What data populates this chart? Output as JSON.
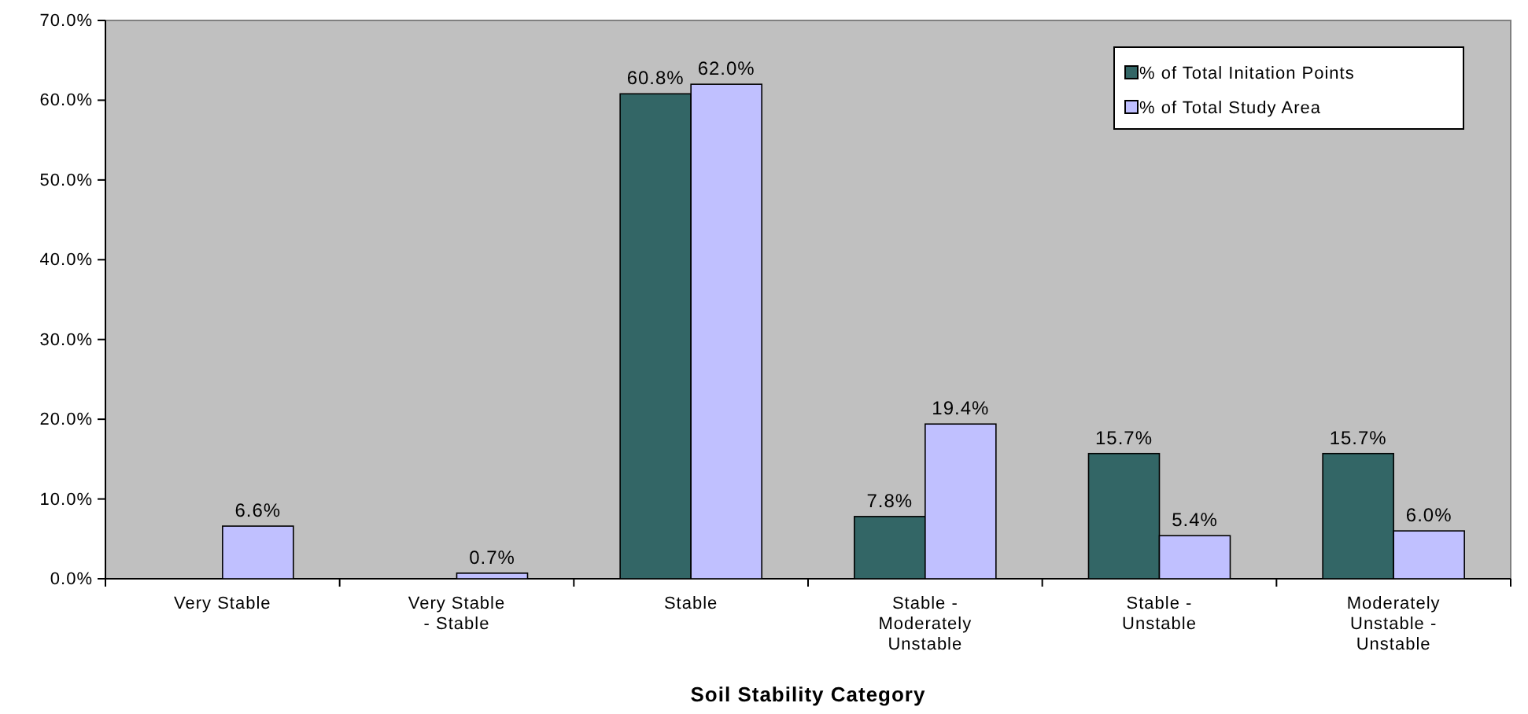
{
  "chart_data": {
    "type": "bar",
    "xlabel": "Soil Stability Category",
    "categories": [
      "Very Stable",
      "Very Stable - Stable",
      "Stable",
      "Stable - Moderately Unstable",
      "Stable - Unstable",
      "Moderately Unstable - Unstable"
    ],
    "series": [
      {
        "name": "% of Total Initation Points",
        "color": "#336666",
        "values": [
          null,
          null,
          60.8,
          7.8,
          15.7,
          15.7
        ],
        "value_labels": [
          null,
          null,
          "60.8%",
          "7.8%",
          "15.7%",
          "15.7%"
        ]
      },
      {
        "name": "% of Total Study Area",
        "color": "#c0c0ff",
        "values": [
          6.6,
          0.7,
          62.0,
          19.4,
          5.4,
          6.0
        ],
        "value_labels": [
          "6.6%",
          "0.7%",
          "62.0%",
          "19.4%",
          "5.4%",
          "6.0%"
        ]
      }
    ],
    "ylim": [
      0,
      70
    ],
    "yticks": [
      {
        "value": 0,
        "label": "0.0%"
      },
      {
        "value": 10,
        "label": "10.0%"
      },
      {
        "value": 20,
        "label": "20.0%"
      },
      {
        "value": 30,
        "label": "30.0%"
      },
      {
        "value": 40,
        "label": "40.0%"
      },
      {
        "value": 50,
        "label": "50.0%"
      },
      {
        "value": 60,
        "label": "60.0%"
      },
      {
        "value": 70,
        "label": "70.0%"
      }
    ],
    "legend": "top right",
    "grid": false
  }
}
